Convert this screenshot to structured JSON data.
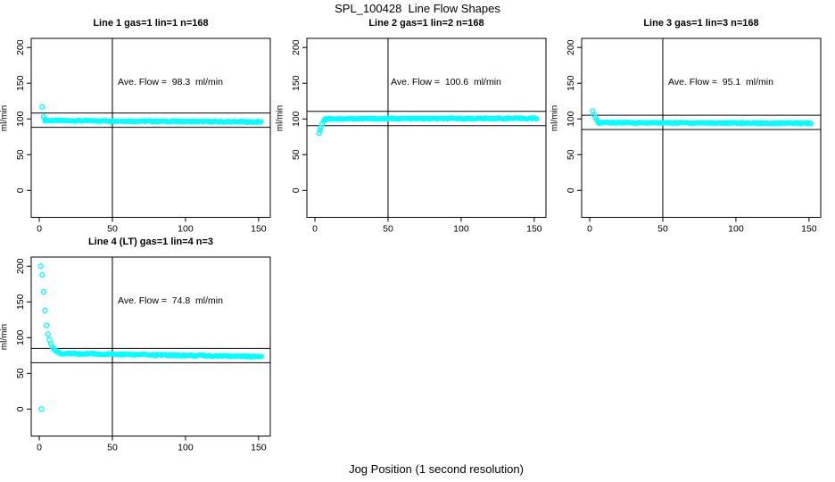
{
  "figure": {
    "title": "SPL_100428  Line Flow Shapes",
    "xlabel": "Jog Position (1 second resolution)"
  },
  "chart_data": {
    "type": "scatter",
    "title": "SPL_100428  Line Flow Shapes",
    "xlabel": "Jog Position (1 second resolution)",
    "ylabel": "ml/min",
    "x_ticks": [
      0,
      50,
      100,
      150
    ],
    "y_ticks": [
      0,
      50,
      100,
      150,
      200
    ],
    "xlim": [
      -5.5,
      158
    ],
    "ylim": [
      -37.75,
      212.75
    ],
    "grid": false,
    "legend": "none",
    "point_color": "#00ffff",
    "axis_color": "#000000",
    "vline_x": 50,
    "panels": [
      {
        "title": "Line 1 gas=1 lin=1 n=168",
        "annotation": "Ave. Flow =  98.3  ml/min",
        "ave_flow_ml_min": 98.3,
        "hlines": [
          108.3,
          88.3
        ],
        "transient_points": [
          [
            2,
            117
          ],
          [
            3,
            103
          ],
          [
            4,
            99.5
          ]
        ],
        "band": {
          "x_start": 4,
          "x_end": 152,
          "y_start": 97.8,
          "y_end": 95.8,
          "jitter": 0.9,
          "step": 0.75
        }
      },
      {
        "title": "Line 2 gas=1 lin=2 n=168",
        "annotation": "Ave. Flow =  100.6  ml/min",
        "ave_flow_ml_min": 100.6,
        "hlines": [
          110.6,
          90.6
        ],
        "transient_points": [
          [
            3,
            80
          ],
          [
            3.5,
            84.5
          ],
          [
            4,
            88
          ],
          [
            5,
            93
          ],
          [
            6,
            97
          ],
          [
            7,
            99
          ]
        ],
        "band": {
          "x_start": 7,
          "x_end": 152,
          "y_start": 100.2,
          "y_end": 100.8,
          "jitter": 0.9,
          "step": 0.75
        }
      },
      {
        "title": "Line 3 gas=1 lin=3 n=168",
        "annotation": "Ave. Flow =  95.1  ml/min",
        "ave_flow_ml_min": 95.1,
        "hlines": [
          105.1,
          85.1
        ],
        "transient_points": [
          [
            2,
            111
          ],
          [
            3,
            106
          ],
          [
            4,
            102
          ],
          [
            5,
            98
          ],
          [
            6,
            96
          ]
        ],
        "band": {
          "x_start": 6,
          "x_end": 152,
          "y_start": 94.8,
          "y_end": 94.0,
          "jitter": 0.9,
          "step": 0.75
        }
      },
      {
        "title": "Line 4 (LT) gas=1 lin=4 n=3",
        "annotation": "Ave. Flow =  74.8  ml/min",
        "ave_flow_ml_min": 74.8,
        "hlines": [
          84.8,
          64.8
        ],
        "transient_points": [
          [
            1,
            200
          ],
          [
            1.5,
            0
          ],
          [
            2,
            188
          ],
          [
            3,
            164
          ],
          [
            4,
            138
          ],
          [
            5,
            117
          ],
          [
            6,
            105
          ],
          [
            7,
            97
          ],
          [
            8,
            91
          ],
          [
            9,
            87
          ],
          [
            10,
            84
          ],
          [
            11,
            82
          ],
          [
            12,
            80.5
          ],
          [
            13,
            79.5
          ],
          [
            14,
            78.5
          ]
        ],
        "band": {
          "x_start": 14,
          "x_end": 152,
          "y_start": 77.8,
          "y_end": 73.5,
          "jitter": 1.1,
          "step": 0.75
        }
      }
    ]
  }
}
